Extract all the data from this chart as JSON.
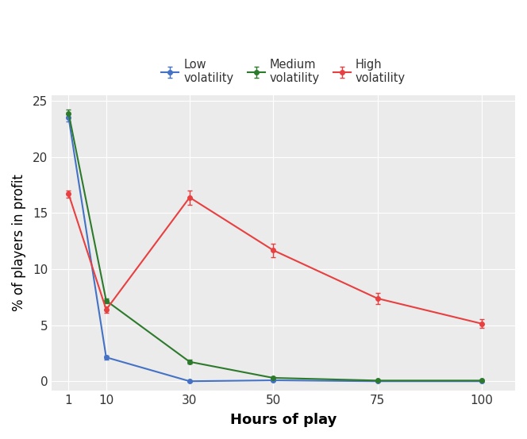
{
  "x": [
    1,
    10,
    30,
    50,
    75,
    100
  ],
  "low_y": [
    23.5,
    2.15,
    0.02,
    0.1,
    0.02,
    0.02
  ],
  "low_err": [
    0.35,
    0.18,
    0.04,
    0.04,
    0.02,
    0.02
  ],
  "med_y": [
    23.9,
    7.2,
    1.75,
    0.32,
    0.08,
    0.08
  ],
  "med_err": [
    0.35,
    0.22,
    0.18,
    0.09,
    0.04,
    0.04
  ],
  "high_y": [
    16.7,
    6.4,
    16.4,
    11.7,
    7.4,
    5.15
  ],
  "high_err": [
    0.32,
    0.28,
    0.65,
    0.6,
    0.52,
    0.38
  ],
  "low_color": "#4472C4",
  "med_color": "#2D7A2D",
  "high_color": "#E84040",
  "xlabel": "Hours of play",
  "ylabel": "% of players in profit",
  "ylim": [
    -0.8,
    25.5
  ],
  "yticks": [
    0,
    5,
    10,
    15,
    20,
    25
  ],
  "xtick_pos": [
    1,
    10,
    30,
    50,
    75,
    100
  ],
  "xtick_labels": [
    "1",
    "10",
    "30",
    "50",
    "75",
    "100"
  ],
  "legend_labels": [
    "Low\nvolatility",
    "Medium\nvolatility",
    "High\nvolatility"
  ],
  "bg_color": "#EBEBEB",
  "panel_bg": "#EBEBEB",
  "grid_color": "#FFFFFF",
  "marker": "o",
  "markersize": 4,
  "linewidth": 1.5,
  "xlabel_fontsize": 13,
  "ylabel_fontsize": 12,
  "tick_fontsize": 11,
  "legend_fontsize": 10.5
}
